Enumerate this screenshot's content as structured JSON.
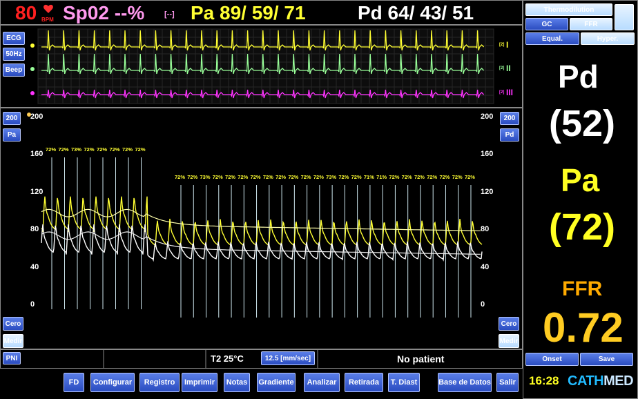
{
  "header": {
    "heart_rate": "80",
    "heart_rate_unit": "BPM",
    "spo2": "Sp02 --%",
    "spo2_status": "[--]",
    "pa": "Pa 89/ 59/ 71",
    "pd": "Pd 64/ 43/ 51"
  },
  "ecg": {
    "buttons": [
      "ECG",
      "50Hz",
      "Beep"
    ],
    "leads": [
      {
        "gain": "[2]",
        "name": "I"
      },
      {
        "gain": "[2]",
        "name": "II"
      },
      {
        "gain": "[2]",
        "name": "III"
      }
    ]
  },
  "pressure": {
    "left_buttons": [
      "200",
      "Pa"
    ],
    "right_buttons": [
      "200",
      "Pd"
    ],
    "axis_left": [
      "200",
      "160",
      "120",
      "80",
      "40",
      "0"
    ],
    "axis_right": [
      "200",
      "160",
      "120",
      "80",
      "40",
      "0"
    ],
    "ratio_labels_first": [
      "72%",
      "72%",
      "73%",
      "72%",
      "72%",
      "72%",
      "72%",
      "72%"
    ],
    "ratio_labels_second": [
      "72%",
      "72%",
      "73%",
      "72%",
      "72%",
      "72%",
      "72%",
      "72%",
      "72%",
      "72%",
      "72%",
      "72%",
      "73%",
      "72%",
      "72%",
      "71%",
      "71%",
      "72%",
      "72%",
      "72%",
      "72%",
      "72%",
      "72%",
      "72%"
    ],
    "bottom_left_buttons": [
      "Cero",
      "Medir"
    ],
    "bottom_right_buttons": [
      "Cero",
      "Medir"
    ]
  },
  "status_bar": {
    "pni": "PNI",
    "temperature": "T2  25°C",
    "speed": "12.5 [mm/sec]",
    "patient": "No patient"
  },
  "toolbar": [
    "FD",
    "Configurar",
    "Registro",
    "Imprimir",
    "Notas",
    "Gradiente",
    "Analizar",
    "Retirada",
    "T. Diast",
    "Base de Datos",
    "Salir"
  ],
  "clock": "16:28",
  "logo": {
    "cath": "CATH",
    "med": "MED"
  },
  "side_panel": {
    "mode_buttons": [
      "Thermodilution",
      "GC",
      "FFR",
      "Equal.",
      "Hyper."
    ],
    "pd_label": "Pd",
    "pd_value": "(52)",
    "pa_label": "Pa",
    "pa_value": "(72)",
    "ffr_label": "FFR",
    "ffr_value": "0.72",
    "actions": [
      "Onset",
      "Save"
    ]
  }
}
